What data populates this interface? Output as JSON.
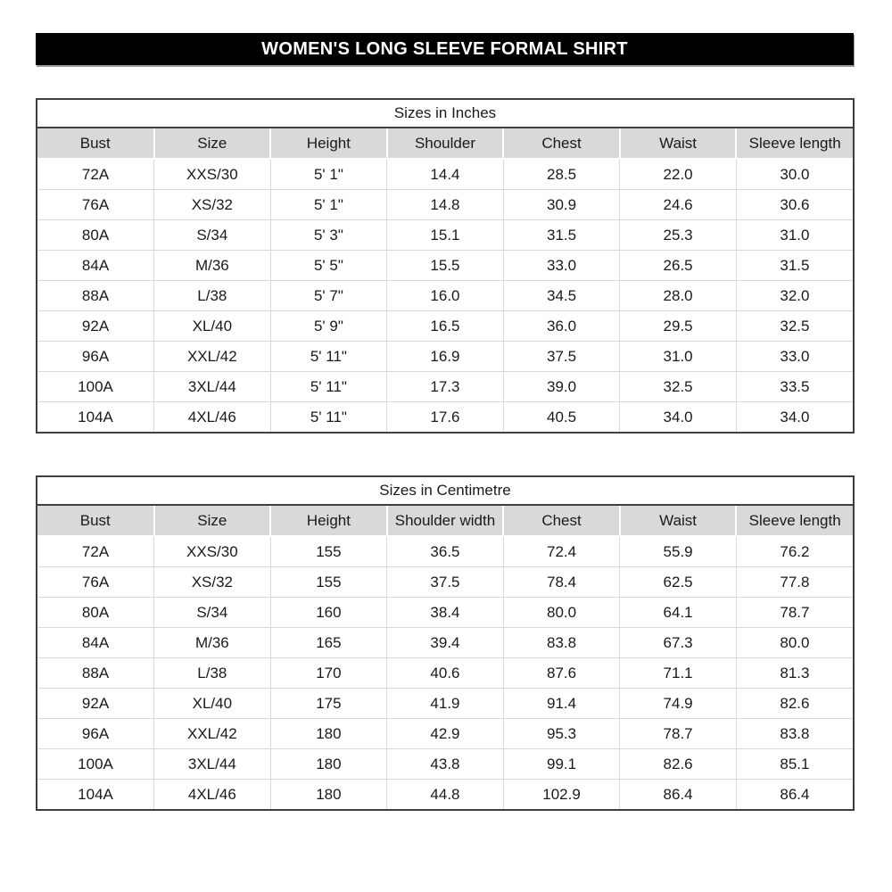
{
  "banner": {
    "title": "WOMEN'S LONG SLEEVE FORMAL SHIRT",
    "bg_color": "#000000",
    "text_color": "#ffffff"
  },
  "colors": {
    "header_row_bg": "#d9d9d9",
    "table_border": "#3f3f3f",
    "row_divider": "#d9d9d9"
  },
  "tables": [
    {
      "title": "Sizes in Inches",
      "columns": [
        "Bust",
        "Size",
        "Height",
        "Shoulder",
        "Chest",
        "Waist",
        "Sleeve length"
      ],
      "rows": [
        [
          "72A",
          "XXS/30",
          "5' 1\"",
          "14.4",
          "28.5",
          "22.0",
          "30.0"
        ],
        [
          "76A",
          "XS/32",
          "5' 1\"",
          "14.8",
          "30.9",
          "24.6",
          "30.6"
        ],
        [
          "80A",
          "S/34",
          "5' 3\"",
          "15.1",
          "31.5",
          "25.3",
          "31.0"
        ],
        [
          "84A",
          "M/36",
          "5' 5\"",
          "15.5",
          "33.0",
          "26.5",
          "31.5"
        ],
        [
          "88A",
          "L/38",
          "5' 7\"",
          "16.0",
          "34.5",
          "28.0",
          "32.0"
        ],
        [
          "92A",
          "XL/40",
          "5' 9\"",
          "16.5",
          "36.0",
          "29.5",
          "32.5"
        ],
        [
          "96A",
          "XXL/42",
          "5' 11\"",
          "16.9",
          "37.5",
          "31.0",
          "33.0"
        ],
        [
          "100A",
          "3XL/44",
          "5' 11\"",
          "17.3",
          "39.0",
          "32.5",
          "33.5"
        ],
        [
          "104A",
          "4XL/46",
          "5' 11\"",
          "17.6",
          "40.5",
          "34.0",
          "34.0"
        ]
      ]
    },
    {
      "title": "Sizes in Centimetre",
      "columns": [
        "Bust",
        "Size",
        "Height",
        "Shoulder width",
        "Chest",
        "Waist",
        "Sleeve length"
      ],
      "rows": [
        [
          "72A",
          "XXS/30",
          "155",
          "36.5",
          "72.4",
          "55.9",
          "76.2"
        ],
        [
          "76A",
          "XS/32",
          "155",
          "37.5",
          "78.4",
          "62.5",
          "77.8"
        ],
        [
          "80A",
          "S/34",
          "160",
          "38.4",
          "80.0",
          "64.1",
          "78.7"
        ],
        [
          "84A",
          "M/36",
          "165",
          "39.4",
          "83.8",
          "67.3",
          "80.0"
        ],
        [
          "88A",
          "L/38",
          "170",
          "40.6",
          "87.6",
          "71.1",
          "81.3"
        ],
        [
          "92A",
          "XL/40",
          "175",
          "41.9",
          "91.4",
          "74.9",
          "82.6"
        ],
        [
          "96A",
          "XXL/42",
          "180",
          "42.9",
          "95.3",
          "78.7",
          "83.8"
        ],
        [
          "100A",
          "3XL/44",
          "180",
          "43.8",
          "99.1",
          "82.6",
          "85.1"
        ],
        [
          "104A",
          "4XL/46",
          "180",
          "44.8",
          "102.9",
          "86.4",
          "86.4"
        ]
      ]
    }
  ]
}
